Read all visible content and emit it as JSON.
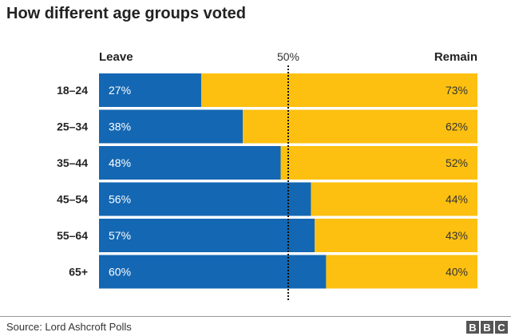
{
  "chart_data": {
    "type": "bar",
    "stacked": true,
    "orientation": "horizontal",
    "title": "How different age groups voted",
    "categories": [
      "18–24",
      "25–34",
      "35–44",
      "45–54",
      "55–64",
      "65+"
    ],
    "series": [
      {
        "name": "Leave",
        "values": [
          27,
          38,
          48,
          56,
          57,
          60
        ],
        "color": "#1467b3"
      },
      {
        "name": "Remain",
        "values": [
          73,
          62,
          52,
          44,
          43,
          40
        ],
        "color": "#fdc010"
      }
    ],
    "reference_line": {
      "value": 50,
      "label": "50%"
    },
    "xlim": [
      0,
      100
    ],
    "value_suffix": "%"
  },
  "footer": {
    "source": "Source: Lord Ashcroft Polls",
    "logo": "BBC"
  }
}
